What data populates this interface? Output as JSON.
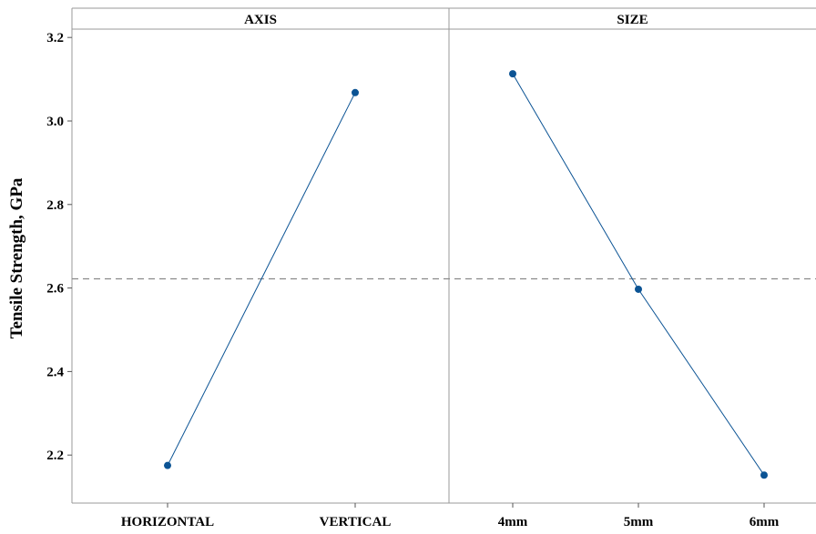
{
  "chart_data": {
    "type": "line",
    "ylabel": "Tensile Strength, GPa",
    "ylim": [
      2.085,
      3.22
    ],
    "yticks": [
      2.2,
      2.4,
      2.6,
      2.8,
      3.0,
      3.2
    ],
    "ytick_labels": [
      "2.2",
      "2.4",
      "2.6",
      "2.8",
      "3.0",
      "3.2"
    ],
    "reference_line": 2.622,
    "grid": false,
    "colors": {
      "series": "#0b5394",
      "reference": "#8a8a8a",
      "frame": "#999999"
    },
    "panels": [
      {
        "title": "AXIS",
        "categories": [
          "HORIZONTAL",
          "VERTICAL"
        ],
        "values": [
          2.175,
          3.068
        ]
      },
      {
        "title": "SIZE",
        "categories": [
          "4mm",
          "5mm",
          "6mm"
        ],
        "values": [
          3.113,
          2.597,
          2.152
        ]
      }
    ]
  }
}
